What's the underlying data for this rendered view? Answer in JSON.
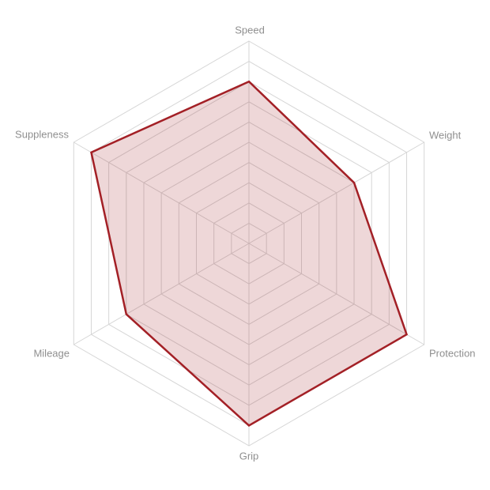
{
  "chart_data": {
    "type": "radar",
    "categories": [
      "Speed",
      "Weight",
      "Protection",
      "Grip",
      "Mileage",
      "Suppleness"
    ],
    "values": [
      8,
      6,
      9,
      9,
      7,
      9
    ],
    "title": "",
    "ylim": [
      0,
      10
    ],
    "rings": 10,
    "grid": true,
    "grid_shape": "hexagon",
    "legend_position": "none",
    "colors": {
      "series_stroke": "#a32026",
      "series_fill_rgba": "rgba(163,32,38,0.18)",
      "grid_line": "#d6d6d6",
      "axis_label": "#8f8f8f",
      "background": "#ffffff"
    }
  }
}
